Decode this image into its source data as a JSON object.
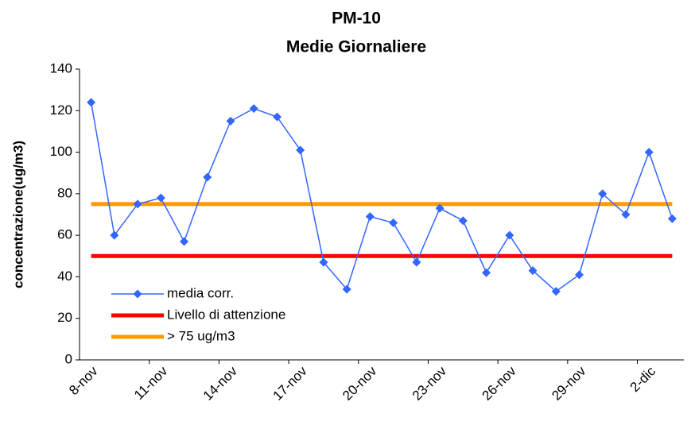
{
  "chart_data": {
    "type": "line",
    "title": "PM-10",
    "subtitle": "Medie Giornaliere",
    "y_label": "concentrazione(ug/m3)",
    "categories": [
      "8-nov",
      null,
      null,
      "11-nov",
      null,
      null,
      "14-nov",
      null,
      null,
      "17-nov",
      null,
      null,
      "20-nov",
      null,
      null,
      "23-nov",
      null,
      null,
      "26-nov",
      null,
      null,
      "29-nov",
      null,
      null,
      "2-dic",
      null
    ],
    "series": [
      {
        "name": "media corr.",
        "color": "#3366ff",
        "marker": "diamond",
        "values": [
          124,
          60,
          75,
          78,
          57,
          88,
          115,
          121,
          117,
          101,
          47,
          34,
          69,
          66,
          47,
          73,
          67,
          42,
          60,
          43,
          33,
          41,
          80,
          70,
          100,
          68
        ]
      },
      {
        "name": "Livello di attenzione",
        "color": "#ff0000",
        "marker": "none",
        "values": [
          50,
          50,
          50,
          50,
          50,
          50,
          50,
          50,
          50,
          50,
          50,
          50,
          50,
          50,
          50,
          50,
          50,
          50,
          50,
          50,
          50,
          50,
          50,
          50,
          50,
          50
        ]
      },
      {
        "name": "> 75 ug/m3",
        "color": "#ff9900",
        "marker": "none",
        "values": [
          75,
          75,
          75,
          75,
          75,
          75,
          75,
          75,
          75,
          75,
          75,
          75,
          75,
          75,
          75,
          75,
          75,
          75,
          75,
          75,
          75,
          75,
          75,
          75,
          75,
          75
        ]
      }
    ],
    "ylim": [
      0,
      140
    ],
    "yticks": [
      0,
      20,
      40,
      60,
      80,
      100,
      120,
      140
    ],
    "grid": false,
    "legend": "lower left"
  }
}
